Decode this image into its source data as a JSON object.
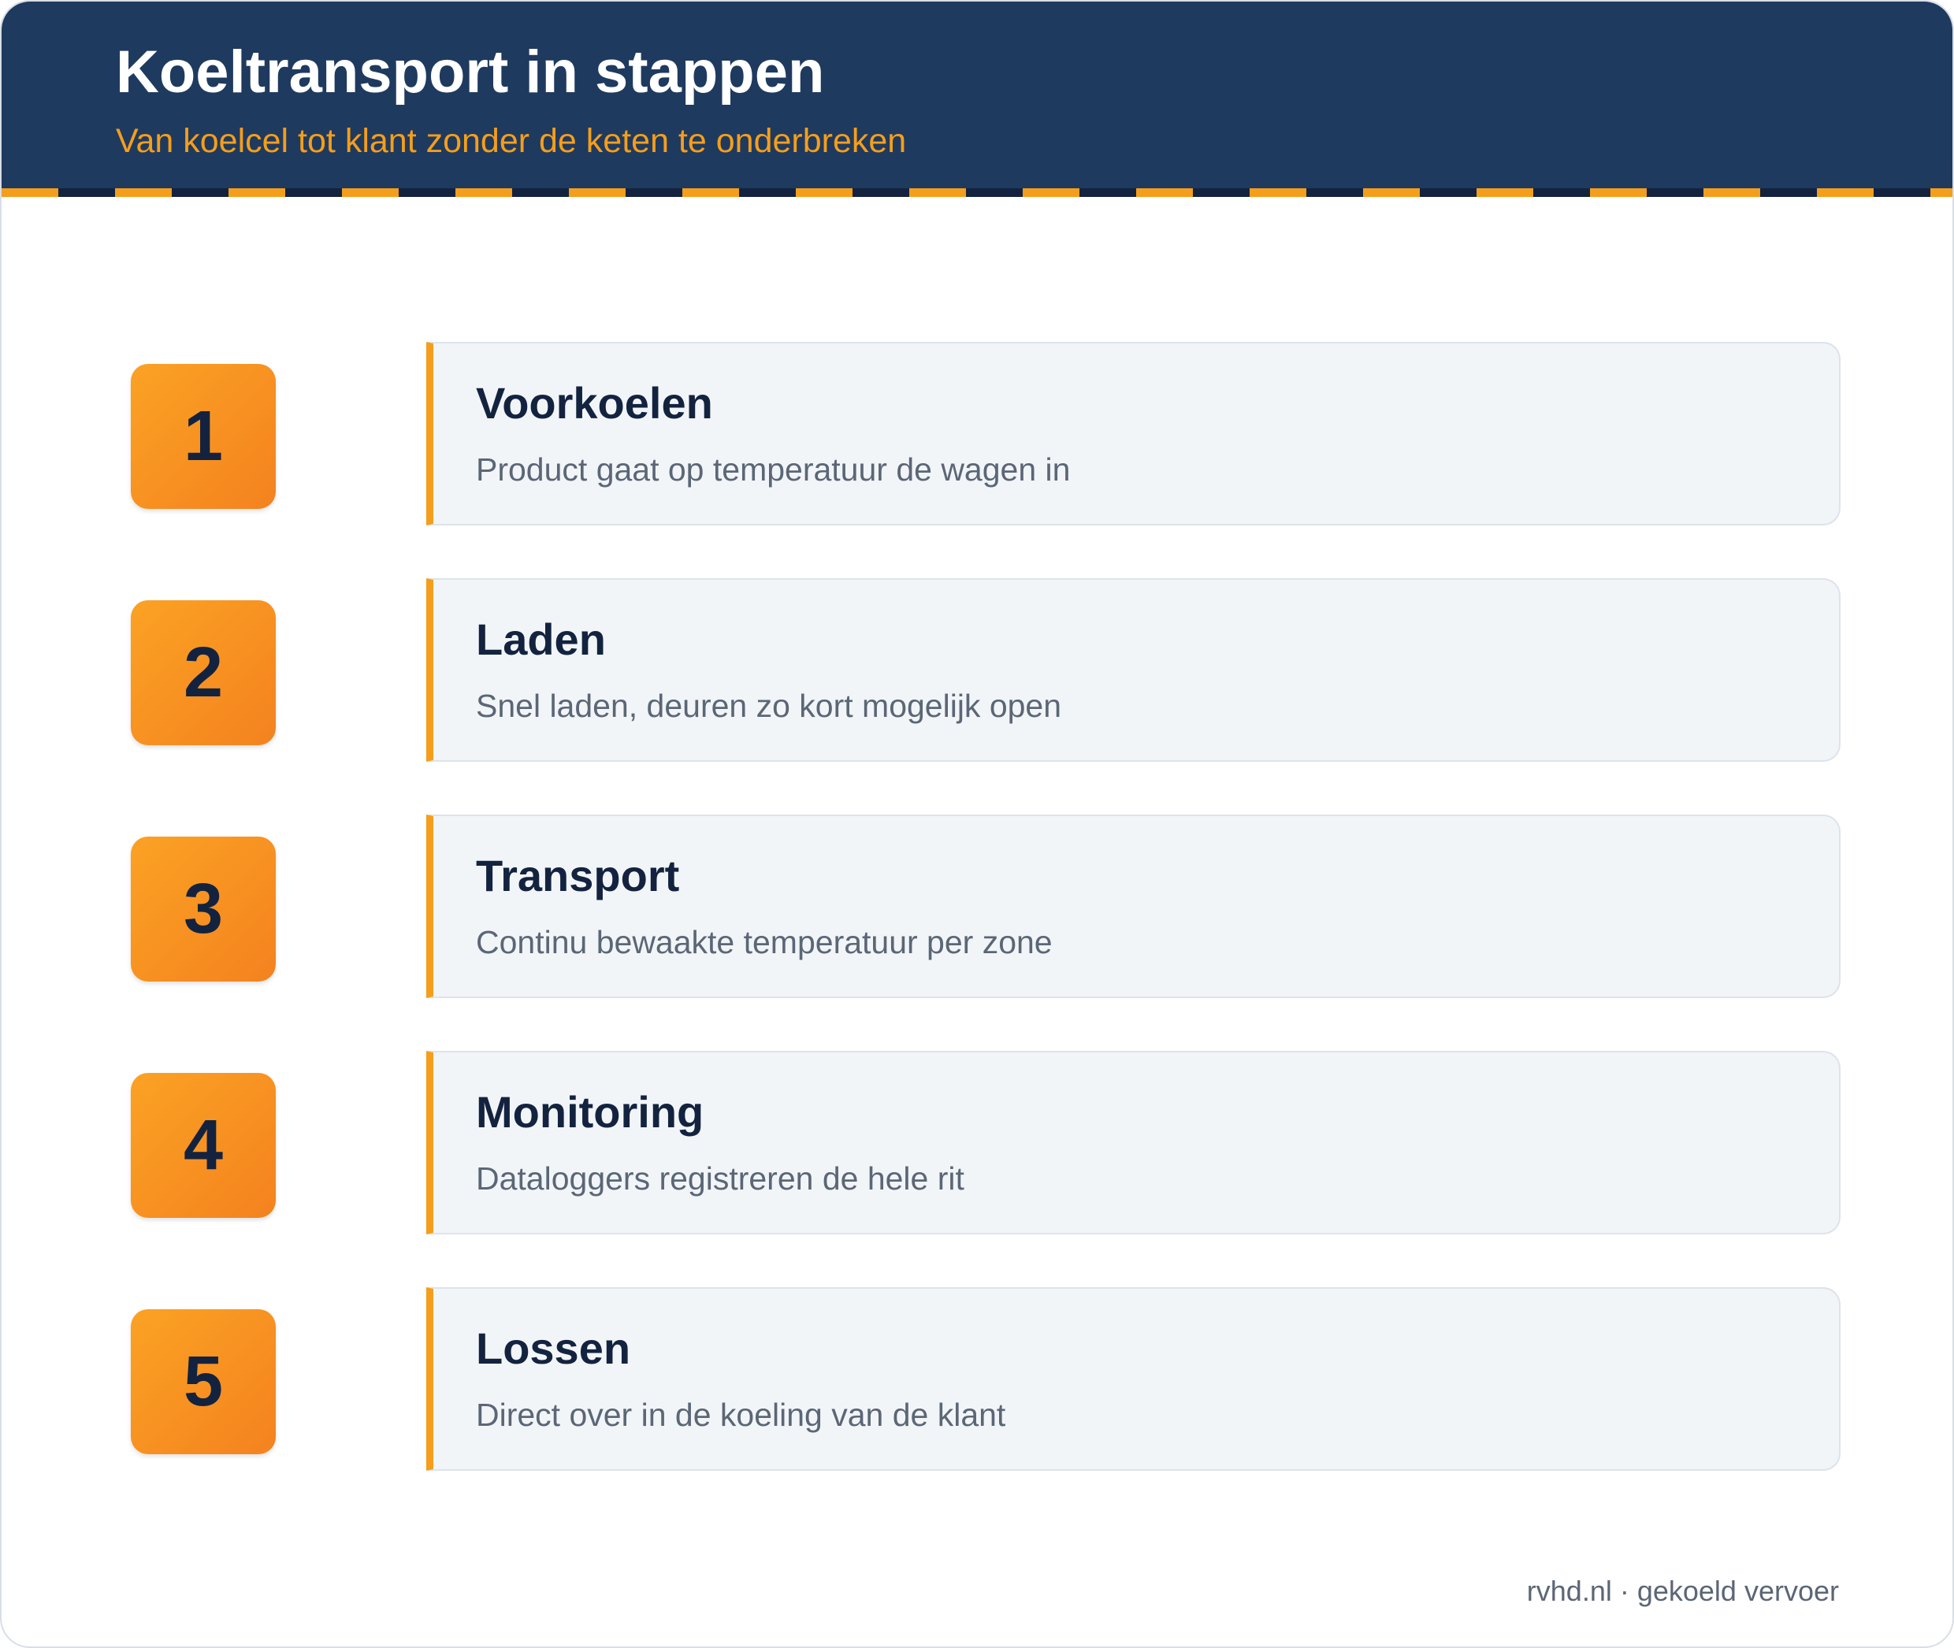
{
  "header": {
    "title": "Koeltransport in stappen",
    "subtitle": "Van koelcel tot klant zonder de keten te onderbreken"
  },
  "steps": [
    {
      "number": 1,
      "title": "Voorkoelen",
      "description": "Product gaat op temperatuur de wagen in"
    },
    {
      "number": 2,
      "title": "Laden",
      "description": "Snel laden, deuren zo kort mogelijk open"
    },
    {
      "number": 3,
      "title": "Transport",
      "description": "Continu bewaakte temperatuur per zone"
    },
    {
      "number": 4,
      "title": "Monitoring",
      "description": "Dataloggers registreren de hele rit"
    },
    {
      "number": 5,
      "title": "Lossen",
      "description": "Direct over in de koeling van de klant"
    }
  ],
  "footer": "rvhd.nl · gekoeld vervoer"
}
